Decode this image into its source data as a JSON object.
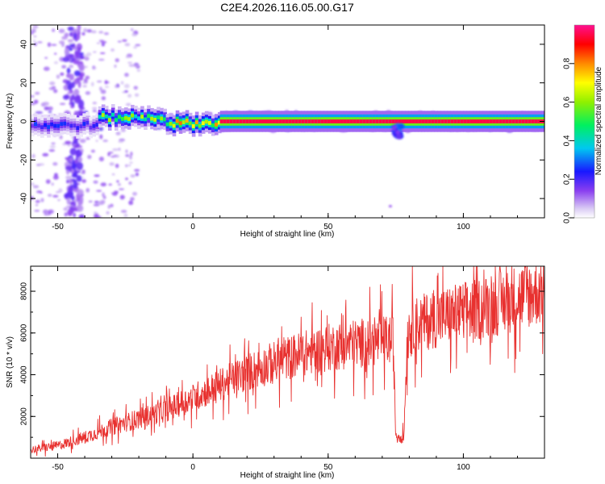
{
  "figure_title": "C2E4.2026.116.05.00.G17",
  "chart_data": [
    {
      "type": "heatmap",
      "xlabel": "Height of straight line (km)",
      "ylabel": "Frequency (Hz)",
      "xlim": [
        -60,
        130
      ],
      "ylim": [
        -50,
        50
      ],
      "x_ticks": [
        "-50",
        "0",
        "50",
        "100"
      ],
      "x_tick_values": [
        -50,
        0,
        50,
        100
      ],
      "y_ticks": [
        "-40",
        "-20",
        "0",
        "20",
        "40"
      ],
      "y_tick_values": [
        -40,
        -20,
        0,
        20,
        40
      ],
      "colorbar": {
        "label": "Normalized spectral amplitude",
        "range": [
          0,
          1
        ],
        "ticks": [
          "0.0",
          "0.2",
          "0.4",
          "0.6",
          "0.8"
        ],
        "tick_values": [
          0.0,
          0.2,
          0.4,
          0.6,
          0.8
        ]
      },
      "ridge": {
        "description": "dominant spectral ridge near 0 Hz",
        "segments": [
          {
            "x": [
              -60,
              -35
            ],
            "freq": -2,
            "amplitude": 0.25
          },
          {
            "x": [
              -35,
              -10
            ],
            "freq": 2,
            "amplitude": 0.6
          },
          {
            "x": [
              -10,
              10
            ],
            "freq": -1,
            "amplitude": 0.75
          },
          {
            "x": [
              10,
              130
            ],
            "freq": 0,
            "amplitude": 0.95
          }
        ],
        "dip_near_km": 75
      }
    },
    {
      "type": "line",
      "xlabel": "Height of straight line (km)",
      "ylabel": "SNR (10 * v/v)",
      "xlim": [
        -60,
        130
      ],
      "ylim": [
        0,
        9200
      ],
      "x_ticks": [
        "-50",
        "0",
        "50",
        "100"
      ],
      "x_tick_values": [
        -50,
        0,
        50,
        100
      ],
      "y_ticks": [
        "2000",
        "4000",
        "6000",
        "8000"
      ],
      "y_tick_values": [
        2000,
        4000,
        6000,
        8000
      ],
      "color": "#e8312f",
      "series": [
        {
          "x": [
            -60,
            -50,
            -40,
            -30,
            -20,
            -10,
            0,
            10,
            20,
            30,
            40,
            50,
            60,
            70,
            74,
            75,
            78,
            79,
            80,
            90,
            100,
            110,
            120,
            130
          ],
          "values": [
            400,
            600,
            1000,
            1500,
            1900,
            2300,
            2900,
            3500,
            4100,
            4600,
            5000,
            5300,
            5500,
            5600,
            5700,
            1100,
            1000,
            5000,
            6300,
            6700,
            7000,
            7300,
            7700,
            8100
          ]
        }
      ]
    }
  ]
}
